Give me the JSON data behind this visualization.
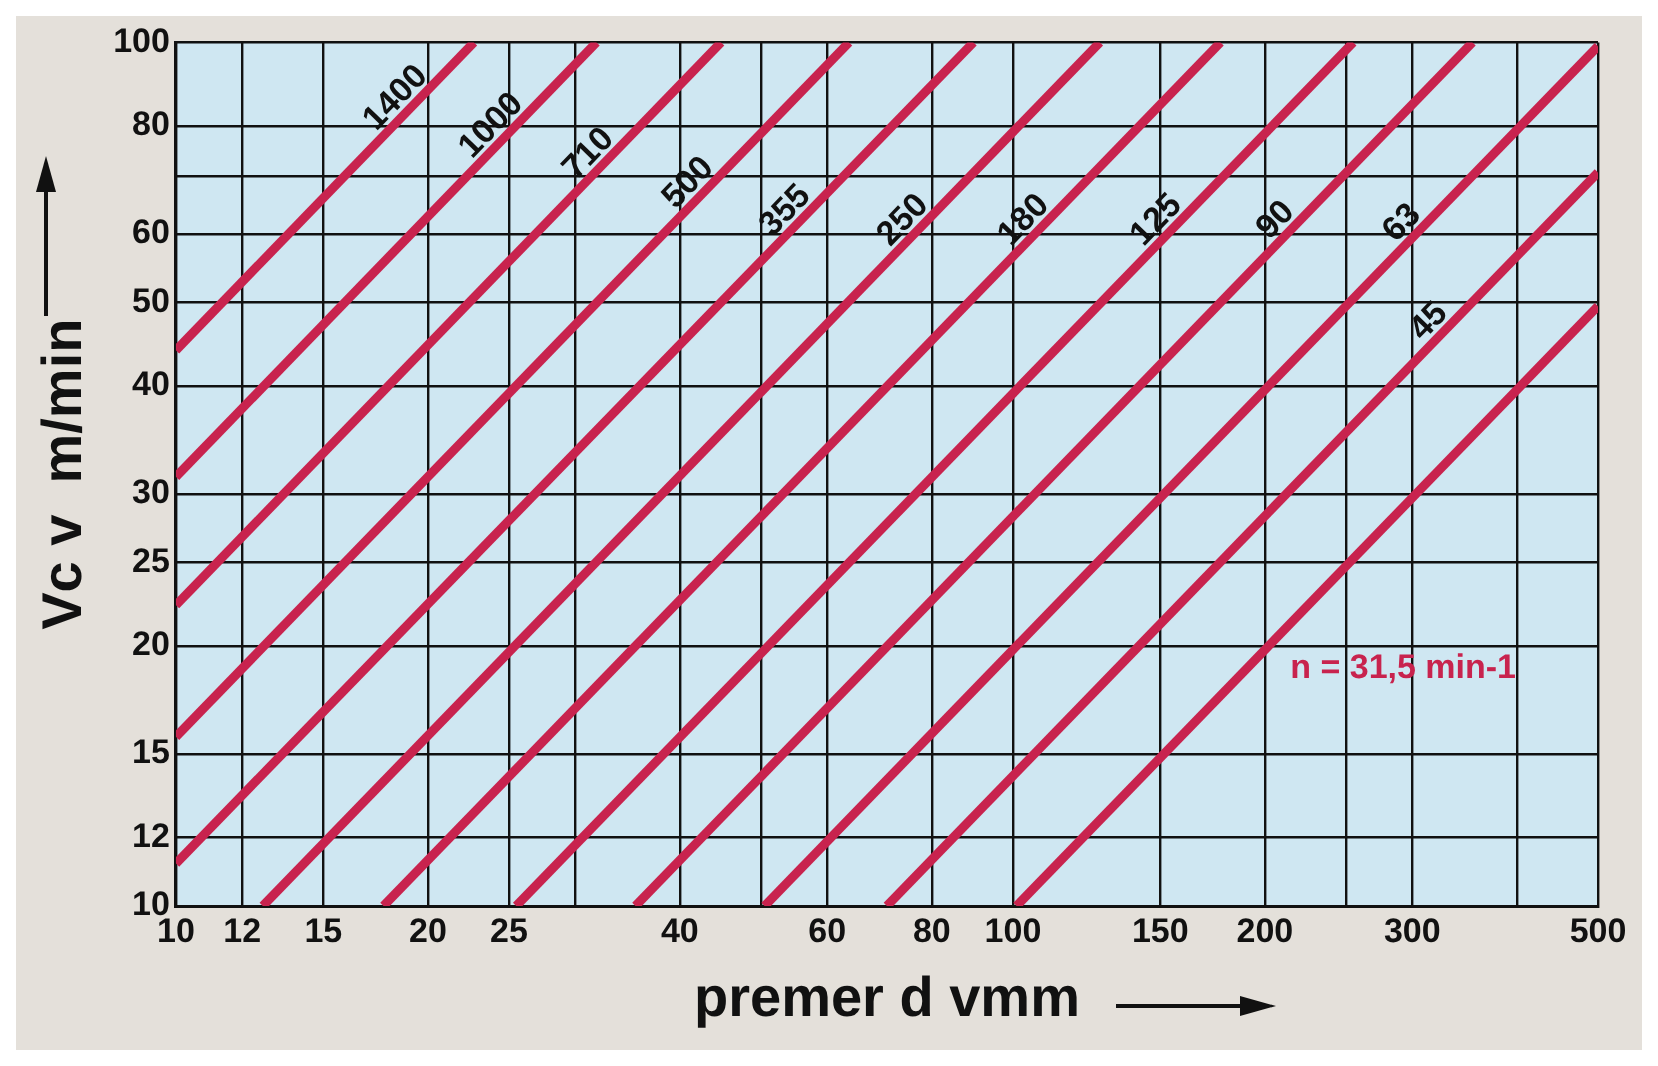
{
  "chart_data": {
    "type": "line",
    "xlabel": "premer d vmm",
    "ylabel": "Vc v  m/min",
    "log": "xy",
    "grid": true,
    "legend": false,
    "marker": "none",
    "xlim": [
      10,
      500
    ],
    "ylim": [
      10,
      100
    ],
    "xticks": [
      10,
      12,
      15,
      20,
      25,
      {
        "value": 30,
        "label": null
      },
      40,
      {
        "value": 50,
        "label": null
      },
      60,
      80,
      100,
      150,
      200,
      {
        "value": 250,
        "label": null
      },
      300,
      {
        "value": 400,
        "label": null
      },
      500
    ],
    "yticks": [
      10,
      12,
      15,
      20,
      25,
      30,
      40,
      50,
      60,
      {
        "value": 70,
        "label": null
      },
      80,
      100
    ],
    "series": [
      {
        "name": "1400",
        "color": "#c8234e",
        "x": [
          10,
          22.7
        ],
        "values": [
          44,
          100
        ]
      },
      {
        "name": "1000",
        "color": "#c8234e",
        "x": [
          10,
          31.8
        ],
        "values": [
          31.4,
          100
        ]
      },
      {
        "name": "710",
        "color": "#c8234e",
        "x": [
          10,
          44.8
        ],
        "values": [
          22.3,
          100
        ]
      },
      {
        "name": "500",
        "color": "#c8234e",
        "x": [
          10,
          63.7
        ],
        "values": [
          15.7,
          100
        ]
      },
      {
        "name": "355",
        "color": "#c8234e",
        "x": [
          10,
          89.7
        ],
        "values": [
          11.2,
          100
        ]
      },
      {
        "name": "250",
        "color": "#c8234e",
        "x": [
          12.7,
          127
        ],
        "values": [
          10,
          100
        ]
      },
      {
        "name": "180",
        "color": "#c8234e",
        "x": [
          17.7,
          177
        ],
        "values": [
          10,
          100
        ]
      },
      {
        "name": "125",
        "color": "#c8234e",
        "x": [
          25.5,
          255
        ],
        "values": [
          10,
          100
        ]
      },
      {
        "name": "90",
        "color": "#c8234e",
        "x": [
          35.4,
          354
        ],
        "values": [
          10,
          100
        ]
      },
      {
        "name": "63",
        "color": "#c8234e",
        "x": [
          50.5,
          500
        ],
        "values": [
          10,
          99
        ]
      },
      {
        "name": "45",
        "color": "#c8234e",
        "x": [
          70.7,
          500
        ],
        "values": [
          10,
          70.7
        ]
      },
      {
        "name": "n = 31,5 min-1",
        "color": "#c8234e",
        "x": [
          101,
          500
        ],
        "values": [
          10,
          49.5
        ]
      }
    ]
  }
}
